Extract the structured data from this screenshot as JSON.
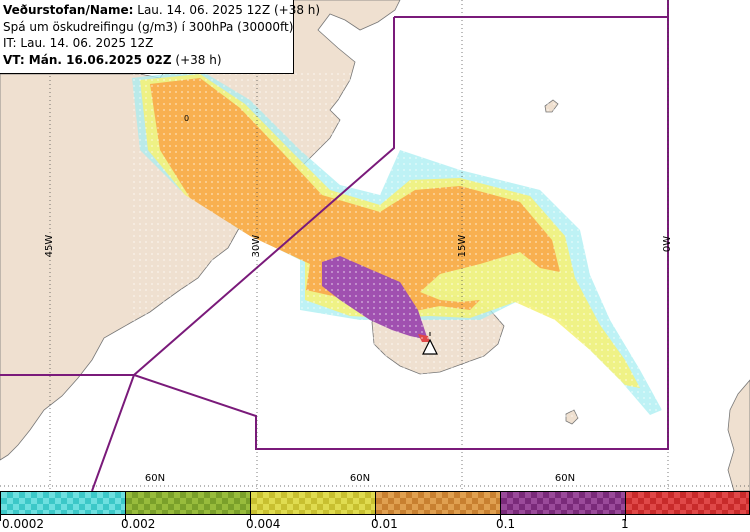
{
  "header": {
    "line1_bold": "Veðurstofan/Name:",
    "line1_rest": " Lau. 14. 06. 2025 12Z (+38 h)",
    "line2": "Spá um öskudreifingu (g/m3) í 300hPa (30000ft)",
    "line3": "IT: Lau. 14. 06. 2025 12Z",
    "line4_bold": "VT: Mán. 16.06.2025 02Z",
    "line4_rest": " (+38 h)"
  },
  "map": {
    "grid_labels_lon": [
      "45W",
      "30W",
      "15W",
      "0W"
    ],
    "grid_labels_lat": [
      "60N",
      "60N",
      "60N"
    ],
    "contour_label": "0",
    "colors": {
      "land": "#efe0d0",
      "sea": "#ffffff",
      "coast": "#777777",
      "boundary": "#7a1a7a",
      "orange": "#f8b050",
      "yellow": "#f4f27a",
      "cyan": "#a8eef2",
      "purple": "#a050b0"
    },
    "volcano_icon": "volcano-warning-triangle-icon"
  },
  "legend": {
    "segments": [
      {
        "color_a": "#3cc8c8",
        "color_b": "#6ee0e0"
      },
      {
        "color_a": "#7aa02a",
        "color_b": "#98bc3c"
      },
      {
        "color_a": "#c8c030",
        "color_b": "#e0dc50"
      },
      {
        "color_a": "#c88030",
        "color_b": "#e0a050"
      },
      {
        "color_a": "#7a2a7a",
        "color_b": "#9a4a9a"
      },
      {
        "color_a": "#c82a2a",
        "color_b": "#e04848"
      }
    ],
    "labels": [
      "0.0002",
      "0.002",
      "0.004",
      "0.01",
      "0.1",
      "1"
    ]
  }
}
